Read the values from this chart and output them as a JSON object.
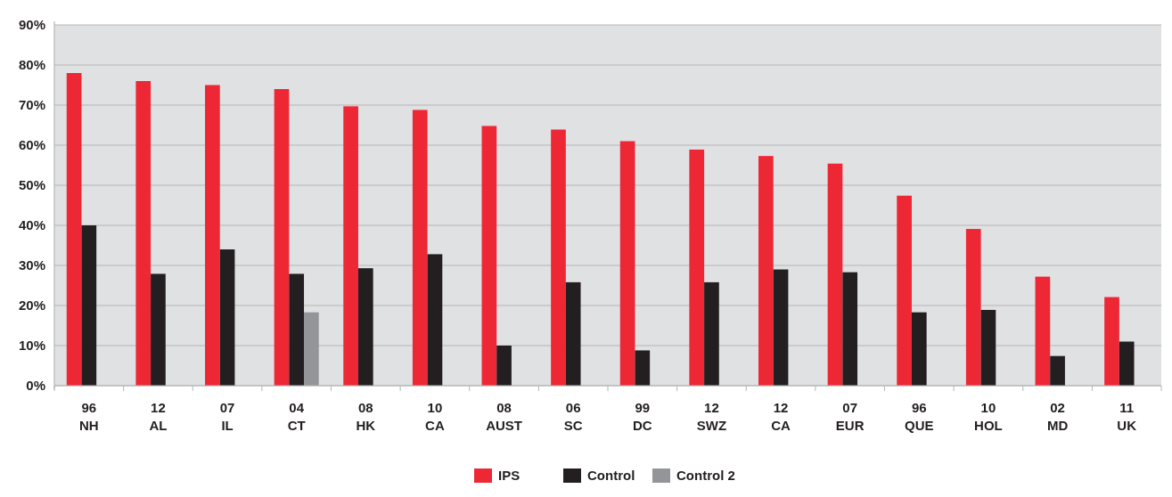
{
  "chart_data": {
    "type": "bar",
    "categories": [
      "96\nNH",
      "12\nAL",
      "07\nIL",
      "04\nCT",
      "08\nHK",
      "10\nCA",
      "08\nAUST",
      "06\nSC",
      "99\nDC",
      "12\nSWZ",
      "12\nCA",
      "07\nEUR",
      "96\nQUE",
      "10\nHOL",
      "02\nMD",
      "11\nUK"
    ],
    "series": [
      {
        "name": "IPS",
        "color": "#ee2735",
        "values": [
          78,
          76,
          75,
          74,
          69.7,
          68.8,
          64.8,
          63.9,
          61,
          58.9,
          57.3,
          55.4,
          47.4,
          39.1,
          27.2,
          22.1
        ]
      },
      {
        "name": "Control",
        "color": "#231f20",
        "values": [
          40,
          27.9,
          34,
          27.9,
          29.3,
          32.8,
          10,
          25.8,
          8.8,
          25.8,
          29,
          28.3,
          18.3,
          18.9,
          7.4,
          11
        ]
      },
      {
        "name": "Control 2",
        "color": "#939598",
        "values": [
          null,
          null,
          null,
          18.3,
          null,
          null,
          null,
          null,
          null,
          null,
          null,
          null,
          null,
          null,
          null,
          null
        ]
      }
    ],
    "ylim": [
      0,
      90
    ],
    "yticks": [
      {
        "value": 0,
        "label": "0%"
      },
      {
        "value": 10,
        "label": "10%"
      },
      {
        "value": 20,
        "label": "20%"
      },
      {
        "value": 30,
        "label": "30%"
      },
      {
        "value": 40,
        "label": "40%"
      },
      {
        "value": 50,
        "label": "50%"
      },
      {
        "value": 60,
        "label": "60%"
      },
      {
        "value": 70,
        "label": "70%"
      },
      {
        "value": 80,
        "label": "80%"
      },
      {
        "value": 90,
        "label": "90%"
      }
    ],
    "grid": "y",
    "legend": "bottom"
  }
}
